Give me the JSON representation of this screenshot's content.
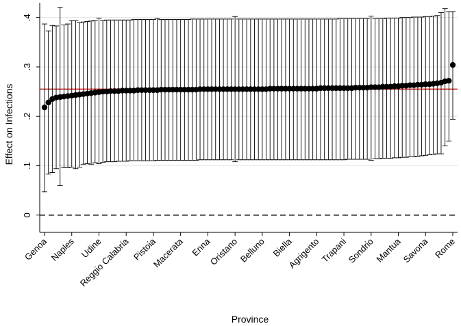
{
  "chart_data": {
    "type": "scatter",
    "xlabel": "Province",
    "ylabel": "Effect on Infections",
    "ylim": [
      -0.035,
      0.43
    ],
    "yticks": [
      0,
      0.1,
      0.2,
      0.3,
      0.4
    ],
    "ytick_labels": [
      "0",
      ".1",
      ".2",
      ".3",
      ".4"
    ],
    "x_tick_labels": [
      {
        "index": 1,
        "label": "Genoa"
      },
      {
        "index": 8,
        "label": "Naples"
      },
      {
        "index": 15,
        "label": "Udine"
      },
      {
        "index": 22,
        "label": "Reggio Calabria"
      },
      {
        "index": 29,
        "label": "Pistoia"
      },
      {
        "index": 36,
        "label": "Macerata"
      },
      {
        "index": 43,
        "label": "Enna"
      },
      {
        "index": 50,
        "label": "Oristano"
      },
      {
        "index": 57,
        "label": "Belluno"
      },
      {
        "index": 64,
        "label": "Biella"
      },
      {
        "index": 71,
        "label": "Agrigento"
      },
      {
        "index": 78,
        "label": "Trapani"
      },
      {
        "index": 85,
        "label": "Sondrio"
      },
      {
        "index": 92,
        "label": "Mantua"
      },
      {
        "index": 99,
        "label": "Savona"
      },
      {
        "index": 106,
        "label": "Rome"
      }
    ],
    "n_points": 106,
    "point_estimates": [
      0.218,
      0.228,
      0.235,
      0.238,
      0.239,
      0.24,
      0.241,
      0.242,
      0.243,
      0.244,
      0.245,
      0.246,
      0.247,
      0.248,
      0.249,
      0.25,
      0.25,
      0.251,
      0.251,
      0.251,
      0.252,
      0.252,
      0.252,
      0.252,
      0.253,
      0.253,
      0.253,
      0.253,
      0.253,
      0.253,
      0.254,
      0.254,
      0.254,
      0.254,
      0.254,
      0.254,
      0.254,
      0.254,
      0.254,
      0.254,
      0.255,
      0.255,
      0.255,
      0.255,
      0.255,
      0.255,
      0.255,
      0.255,
      0.255,
      0.255,
      0.255,
      0.255,
      0.255,
      0.255,
      0.255,
      0.255,
      0.255,
      0.255,
      0.256,
      0.256,
      0.256,
      0.256,
      0.256,
      0.256,
      0.256,
      0.256,
      0.256,
      0.256,
      0.256,
      0.256,
      0.256,
      0.257,
      0.257,
      0.257,
      0.257,
      0.257,
      0.257,
      0.257,
      0.257,
      0.257,
      0.258,
      0.258,
      0.258,
      0.258,
      0.259,
      0.259,
      0.259,
      0.26,
      0.26,
      0.26,
      0.261,
      0.261,
      0.262,
      0.262,
      0.263,
      0.263,
      0.264,
      0.264,
      0.265,
      0.265,
      0.266,
      0.267,
      0.268,
      0.271,
      0.272,
      0.304
    ],
    "ci_lower": [
      0.047,
      0.083,
      0.086,
      0.094,
      0.06,
      0.096,
      0.096,
      0.097,
      0.094,
      0.097,
      0.103,
      0.104,
      0.103,
      0.106,
      0.104,
      0.107,
      0.108,
      0.108,
      0.108,
      0.109,
      0.109,
      0.109,
      0.11,
      0.11,
      0.11,
      0.11,
      0.11,
      0.11,
      0.11,
      0.111,
      0.111,
      0.111,
      0.111,
      0.111,
      0.111,
      0.111,
      0.111,
      0.111,
      0.111,
      0.111,
      0.112,
      0.112,
      0.112,
      0.112,
      0.112,
      0.112,
      0.112,
      0.112,
      0.112,
      0.108,
      0.112,
      0.112,
      0.112,
      0.112,
      0.112,
      0.112,
      0.112,
      0.112,
      0.112,
      0.112,
      0.112,
      0.112,
      0.112,
      0.112,
      0.112,
      0.112,
      0.112,
      0.112,
      0.112,
      0.112,
      0.112,
      0.112,
      0.112,
      0.112,
      0.112,
      0.112,
      0.112,
      0.112,
      0.113,
      0.113,
      0.113,
      0.113,
      0.113,
      0.113,
      0.111,
      0.114,
      0.114,
      0.115,
      0.115,
      0.115,
      0.116,
      0.116,
      0.117,
      0.117,
      0.118,
      0.118,
      0.119,
      0.12,
      0.121,
      0.122,
      0.123,
      0.124,
      0.124,
      0.14,
      0.15,
      0.194
    ],
    "ci_upper": [
      0.387,
      0.373,
      0.384,
      0.383,
      0.421,
      0.385,
      0.387,
      0.394,
      0.394,
      0.39,
      0.391,
      0.392,
      0.393,
      0.394,
      0.399,
      0.394,
      0.395,
      0.395,
      0.395,
      0.395,
      0.395,
      0.395,
      0.395,
      0.396,
      0.396,
      0.396,
      0.396,
      0.396,
      0.396,
      0.398,
      0.396,
      0.396,
      0.396,
      0.396,
      0.396,
      0.396,
      0.396,
      0.396,
      0.397,
      0.397,
      0.397,
      0.397,
      0.397,
      0.397,
      0.397,
      0.397,
      0.397,
      0.397,
      0.397,
      0.402,
      0.397,
      0.397,
      0.397,
      0.397,
      0.397,
      0.397,
      0.397,
      0.397,
      0.397,
      0.397,
      0.397,
      0.397,
      0.397,
      0.397,
      0.397,
      0.397,
      0.397,
      0.397,
      0.397,
      0.397,
      0.397,
      0.397,
      0.397,
      0.397,
      0.397,
      0.397,
      0.398,
      0.398,
      0.398,
      0.398,
      0.398,
      0.398,
      0.398,
      0.398,
      0.403,
      0.398,
      0.398,
      0.398,
      0.399,
      0.399,
      0.399,
      0.399,
      0.4,
      0.4,
      0.4,
      0.401,
      0.401,
      0.401,
      0.402,
      0.402,
      0.403,
      0.404,
      0.41,
      0.418,
      0.412,
      0.412
    ],
    "reference_lines": [
      {
        "y": 0.255,
        "color": "#cc2222",
        "style": "solid"
      },
      {
        "y": 0,
        "color": "#000000",
        "style": "dashed"
      }
    ],
    "marker_color": "#000000",
    "gridlines": "horizontal",
    "legend": "none"
  }
}
